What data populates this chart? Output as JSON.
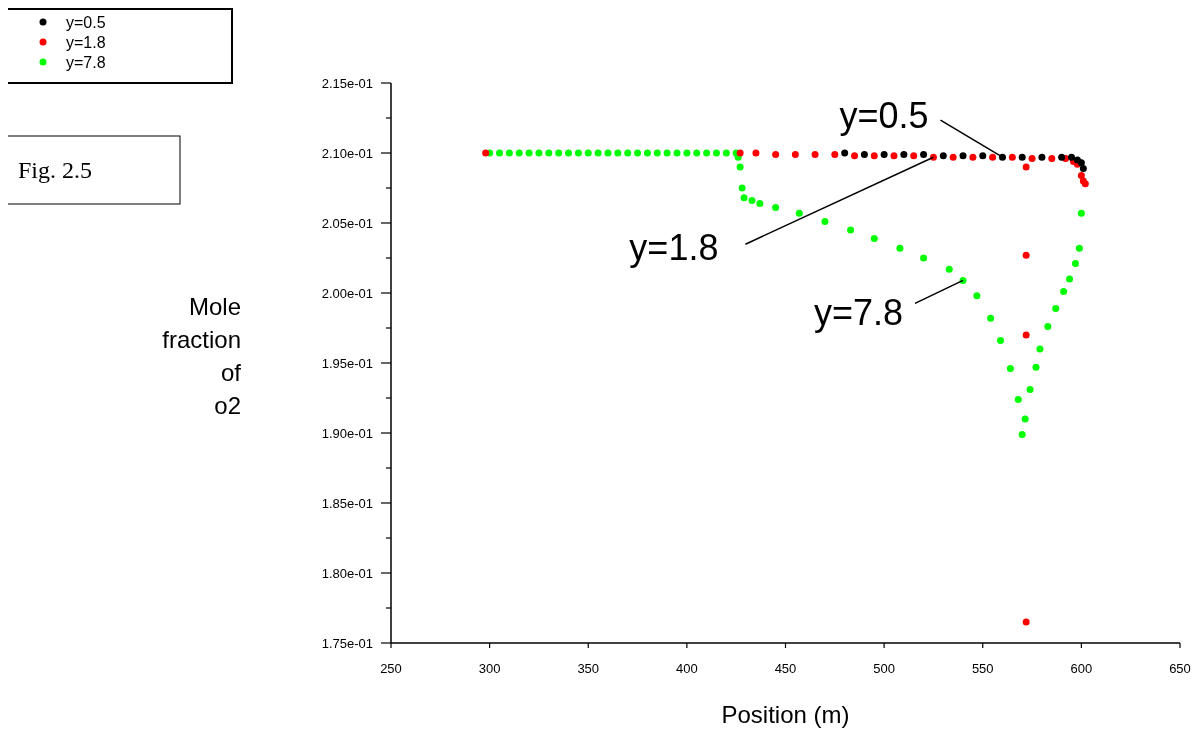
{
  "chart_data": {
    "type": "scatter",
    "xlabel": "Position (m)",
    "ylabel": "Mole fraction of o2",
    "annotations": [
      "Fig. 2.5",
      {
        "text": "y=0.5",
        "x": 560,
        "y": 0.2097
      },
      {
        "text": "y=1.8",
        "x": 525,
        "y": 0.2097
      },
      {
        "text": "y=7.8",
        "x": 540,
        "y": 0.2009
      }
    ],
    "xlim": [
      250,
      650
    ],
    "xticks": [
      250,
      300,
      350,
      400,
      450,
      500,
      550,
      600,
      650
    ],
    "ylim": [
      0.175,
      0.215
    ],
    "yticks": [
      {
        "value": 0.175,
        "label": "1.75e-01"
      },
      {
        "value": 0.1775,
        "label": null
      },
      {
        "value": 0.18,
        "label": "1.80e-01"
      },
      {
        "value": 0.1825,
        "label": null
      },
      {
        "value": 0.185,
        "label": "1.85e-01"
      },
      {
        "value": 0.1875,
        "label": null
      },
      {
        "value": 0.19,
        "label": "1.90e-01"
      },
      {
        "value": 0.1925,
        "label": null
      },
      {
        "value": 0.195,
        "label": "1.95e-01"
      },
      {
        "value": 0.1975,
        "label": null
      },
      {
        "value": 0.2,
        "label": "2.00e-01"
      },
      {
        "value": 0.2025,
        "label": null
      },
      {
        "value": 0.205,
        "label": "2.05e-01"
      },
      {
        "value": 0.2075,
        "label": null
      },
      {
        "value": 0.21,
        "label": "2.10e-01"
      },
      {
        "value": 0.2125,
        "label": null
      },
      {
        "value": 0.215,
        "label": "2.15e-01"
      }
    ],
    "grid": false,
    "legend": "top left",
    "marker": "circle",
    "series": [
      {
        "name": "y=0.5",
        "color": "#000000",
        "x": [
          480,
          490,
          500,
          510,
          520,
          530,
          540,
          550,
          560,
          570,
          580,
          590,
          595,
          598,
          600,
          601
        ],
        "values": [
          0.21,
          0.2099,
          0.2099,
          0.2099,
          0.2099,
          0.2098,
          0.2098,
          0.2098,
          0.2097,
          0.2097,
          0.2097,
          0.2097,
          0.2097,
          0.2095,
          0.2093,
          0.2089
        ]
      },
      {
        "name": "y=1.8",
        "color": "#ff0000",
        "x": [
          298,
          427,
          435,
          445,
          455,
          465,
          475,
          485,
          495,
          505,
          515,
          525,
          535,
          545,
          555,
          565,
          575,
          585,
          592,
          596,
          598,
          600,
          601,
          602,
          572,
          572,
          572,
          572
        ],
        "values": [
          0.21,
          0.21,
          0.21,
          0.2099,
          0.2099,
          0.2099,
          0.2099,
          0.2098,
          0.2098,
          0.2098,
          0.2098,
          0.2097,
          0.2097,
          0.2097,
          0.2097,
          0.2097,
          0.2096,
          0.2096,
          0.2096,
          0.2094,
          0.2092,
          0.2084,
          0.208,
          0.2078,
          0.209,
          0.2027,
          0.197,
          0.1765
        ]
      },
      {
        "name": "y=7.8",
        "color": "#00ff00",
        "x": [
          300,
          305,
          310,
          315,
          320,
          325,
          330,
          335,
          340,
          345,
          350,
          355,
          360,
          365,
          370,
          375,
          380,
          385,
          390,
          395,
          400,
          405,
          410,
          415,
          420,
          425,
          426,
          427,
          428,
          429,
          433,
          437,
          445,
          457,
          470,
          483,
          495,
          508,
          520,
          533,
          540,
          547,
          554,
          559,
          564,
          568,
          570,
          571.5,
          574,
          577,
          579,
          583,
          587,
          591,
          594,
          597,
          599,
          600
        ],
        "values": [
          0.21,
          0.21,
          0.21,
          0.21,
          0.21,
          0.21,
          0.21,
          0.21,
          0.21,
          0.21,
          0.21,
          0.21,
          0.21,
          0.21,
          0.21,
          0.21,
          0.21,
          0.21,
          0.21,
          0.21,
          0.21,
          0.21,
          0.21,
          0.21,
          0.21,
          0.21,
          0.2097,
          0.209,
          0.2075,
          0.2068,
          0.2066,
          0.2064,
          0.2061,
          0.2057,
          0.2051,
          0.2045,
          0.2039,
          0.2032,
          0.2025,
          0.2017,
          0.2009,
          0.1998,
          0.1982,
          0.1966,
          0.1946,
          0.1924,
          0.1899,
          0.191,
          0.1931,
          0.1947,
          0.196,
          0.1976,
          0.1989,
          0.2001,
          0.201,
          0.2021,
          0.2032,
          0.2057
        ]
      }
    ]
  }
}
